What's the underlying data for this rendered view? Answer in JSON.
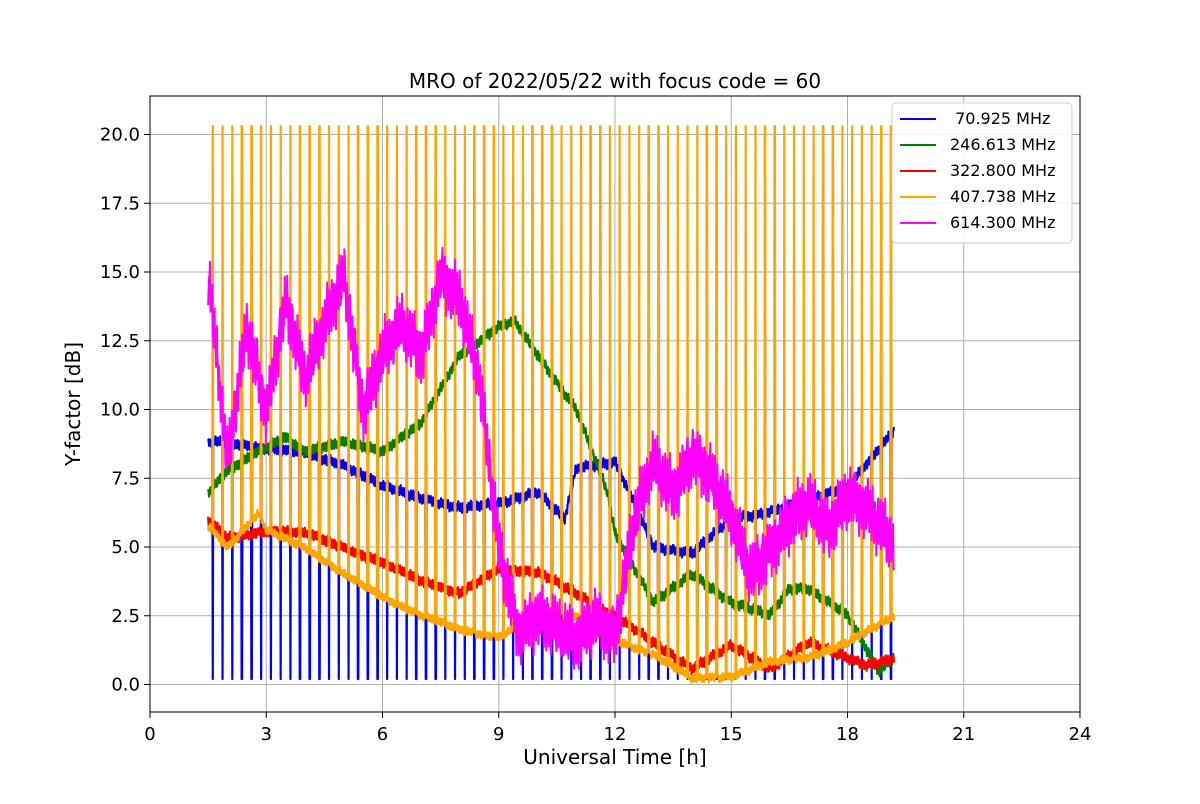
{
  "chart_data": {
    "type": "line",
    "title": "MRO of 2022/05/22 with focus code = 60",
    "xlabel": "Universal Time [h]",
    "ylabel": "Y-factor [dB]",
    "xlim": [
      0,
      24
    ],
    "ylim": [
      -1,
      21.4
    ],
    "xticks": [
      0,
      3,
      6,
      9,
      12,
      15,
      18,
      21,
      24
    ],
    "xtick_labels": [
      "0",
      "3",
      "6",
      "9",
      "12",
      "15",
      "18",
      "21",
      "24"
    ],
    "yticks": [
      0,
      2.5,
      5,
      7.5,
      10,
      12.5,
      15,
      17.5,
      20
    ],
    "ytick_labels": [
      "0.0",
      "2.5",
      "5.0",
      "7.5",
      "10.0",
      "12.5",
      "15.0",
      "17.5",
      "20.0"
    ],
    "grid": true,
    "legend_position": "top-right",
    "spike_period_h": 0.25,
    "series": [
      {
        "name": " 70.925 MHz",
        "color": "#0000ff",
        "x": [
          1.5,
          2,
          3,
          4,
          5,
          6,
          7,
          8,
          9,
          10,
          10.7,
          11,
          12,
          13,
          14,
          15,
          16,
          17,
          18,
          19.2
        ],
        "y": [
          8.8,
          8.8,
          8.6,
          8.4,
          8.0,
          7.2,
          6.8,
          6.4,
          6.6,
          7.0,
          6.0,
          7.9,
          8.1,
          5.0,
          4.8,
          6.0,
          6.3,
          6.7,
          7.2,
          9.2
        ],
        "spike_low": 0.2
      },
      {
        "name": "246.613 MHz",
        "color": "#008000",
        "x": [
          1.5,
          2,
          3,
          3.5,
          4,
          5,
          6,
          7,
          8,
          9,
          9.4,
          10,
          11,
          11.8,
          12,
          13,
          14,
          15,
          16,
          16.5,
          17,
          18,
          18.8,
          19.2
        ],
        "y": [
          7.0,
          7.8,
          8.6,
          9.0,
          8.5,
          8.8,
          8.5,
          9.5,
          12.0,
          13.0,
          13.2,
          12.0,
          10.0,
          7.0,
          5.5,
          3.0,
          4.0,
          3.0,
          2.5,
          3.5,
          3.5,
          2.5,
          0.5,
          1.0
        ]
      },
      {
        "name": "322.800 MHz",
        "color": "#ff0000",
        "x": [
          1.5,
          2,
          3,
          4,
          5,
          6,
          7,
          8,
          9,
          10,
          11,
          12,
          13,
          14,
          15,
          16,
          17,
          18,
          18.5,
          19.2
        ],
        "y": [
          6.0,
          5.3,
          5.6,
          5.5,
          5.0,
          4.4,
          3.8,
          3.3,
          4.2,
          4.1,
          3.3,
          2.5,
          1.5,
          0.6,
          1.4,
          0.6,
          1.5,
          1.0,
          0.7,
          0.9
        ]
      },
      {
        "name": "407.738 MHz",
        "color": "#ffa500",
        "x": [
          1.5,
          2,
          2.8,
          3,
          4,
          5,
          6,
          7,
          8,
          9,
          10,
          11,
          12,
          13,
          14,
          15,
          16,
          17,
          18,
          19.2
        ],
        "y": [
          5.8,
          5.0,
          6.2,
          5.6,
          5.0,
          4.0,
          3.2,
          2.5,
          2.0,
          1.7,
          2.6,
          2.5,
          1.6,
          1.1,
          0.2,
          0.3,
          0.8,
          1.0,
          1.5,
          2.5
        ],
        "spike_high": 20.3
      },
      {
        "name": "614.300 MHz",
        "color": "#ff00ff",
        "x": [
          1.5,
          2,
          2.5,
          3,
          3.5,
          4,
          4.5,
          5,
          5.5,
          6,
          6.5,
          7,
          7.5,
          8,
          8.5,
          9,
          9.5,
          10,
          10.5,
          11,
          11.5,
          12,
          12.5,
          13,
          13.5,
          14,
          14.5,
          15,
          15.5,
          16,
          16.5,
          17,
          17.5,
          18,
          18.5,
          19.2
        ],
        "y": [
          15.0,
          8.0,
          13.0,
          10.0,
          14.0,
          11.0,
          13.0,
          15.0,
          10.0,
          12.0,
          13.0,
          12.0,
          15.0,
          14.0,
          11.0,
          5.0,
          2.0,
          2.5,
          2.0,
          1.5,
          2.5,
          1.8,
          6.0,
          8.0,
          7.0,
          8.5,
          7.5,
          6.0,
          4.0,
          5.0,
          6.0,
          6.5,
          5.5,
          7.0,
          6.5,
          5.0
        ]
      }
    ]
  }
}
